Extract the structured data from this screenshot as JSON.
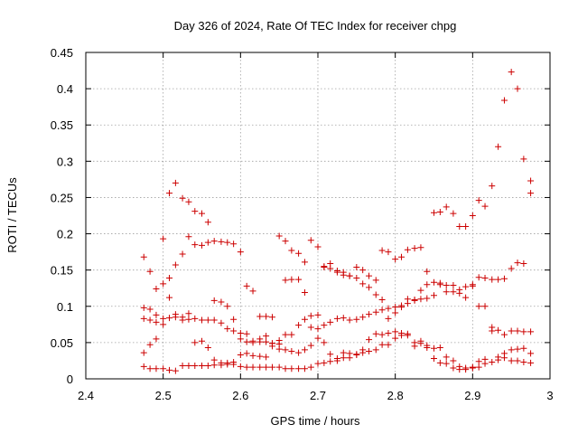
{
  "chart_data": {
    "type": "scatter",
    "title": "Day 326 of 2024, Rate Of TEC Index for receiver chpg",
    "xlabel": "GPS time / hours",
    "ylabel": "ROTI / TECUs",
    "xlim": [
      2.4,
      3.0
    ],
    "ylim": [
      0,
      0.45
    ],
    "xticks": [
      "2.4",
      "2.5",
      "2.6",
      "2.7",
      "2.8",
      "2.9",
      "3"
    ],
    "yticks": [
      "0",
      "0.05",
      "0.1",
      "0.15",
      "0.2",
      "0.25",
      "0.3",
      "0.35",
      "0.4",
      "0.45"
    ],
    "grid": true,
    "marker": "+",
    "color": "#cc0000",
    "series": [
      {
        "name": "ROTI",
        "x": [
          2.475,
          2.483,
          2.491,
          2.5,
          2.508,
          2.516,
          2.525,
          2.533,
          2.541,
          2.55,
          2.558,
          2.566,
          2.575,
          2.583,
          2.591,
          2.6,
          2.608,
          2.616,
          2.625,
          2.633,
          2.641,
          2.65,
          2.658,
          2.666,
          2.675,
          2.683,
          2.691,
          2.7,
          2.708,
          2.716,
          2.725,
          2.733,
          2.741,
          2.75,
          2.758,
          2.766,
          2.775,
          2.783,
          2.791,
          2.8,
          2.808,
          2.816,
          2.825,
          2.833,
          2.841,
          2.85,
          2.858,
          2.866,
          2.875,
          2.883,
          2.891,
          2.9,
          2.908,
          2.916,
          2.925,
          2.933,
          2.941,
          2.95,
          2.958,
          2.966,
          2.975,
          2.475,
          2.483,
          2.491,
          2.5,
          2.508,
          2.516,
          2.525,
          2.533,
          2.541,
          2.55,
          2.558,
          2.566,
          2.575,
          2.583,
          2.591,
          2.6,
          2.608,
          2.616,
          2.625,
          2.633,
          2.641,
          2.65,
          2.658,
          2.666,
          2.675,
          2.683,
          2.691,
          2.7,
          2.708,
          2.716,
          2.725,
          2.733,
          2.741,
          2.75,
          2.758,
          2.766,
          2.775,
          2.783,
          2.791,
          2.8,
          2.808,
          2.816,
          2.825,
          2.833,
          2.841,
          2.85,
          2.858,
          2.866,
          2.875,
          2.883,
          2.891,
          2.9,
          2.908,
          2.916,
          2.925,
          2.933,
          2.941,
          2.95,
          2.958,
          2.966,
          2.975,
          2.475,
          2.483,
          2.491,
          2.5,
          2.508,
          2.516,
          2.525,
          2.533,
          2.541,
          2.55,
          2.558,
          2.566,
          2.575,
          2.583,
          2.591,
          2.6,
          2.608,
          2.616,
          2.625,
          2.633,
          2.641,
          2.65,
          2.658,
          2.666,
          2.675,
          2.683,
          2.691,
          2.7,
          2.708,
          2.716,
          2.725,
          2.733,
          2.741,
          2.75,
          2.758,
          2.766,
          2.775,
          2.783,
          2.791,
          2.8,
          2.808,
          2.816,
          2.825,
          2.833,
          2.841,
          2.85,
          2.858,
          2.866,
          2.875,
          2.883,
          2.891,
          2.9,
          2.908,
          2.916,
          2.925,
          2.933,
          2.941,
          2.95,
          2.958,
          2.966,
          2.975,
          2.475,
          2.483,
          2.491,
          2.5,
          2.508,
          2.516,
          2.525,
          2.533,
          2.541,
          2.55,
          2.558,
          2.566,
          2.575,
          2.583,
          2.591,
          2.6,
          2.608,
          2.616,
          2.625,
          2.633,
          2.641,
          2.65,
          2.658,
          2.666,
          2.675,
          2.683,
          2.691,
          2.7,
          2.708,
          2.716,
          2.725,
          2.733,
          2.741,
          2.75,
          2.758,
          2.766,
          2.775,
          2.783,
          2.791,
          2.8,
          2.808,
          2.816,
          2.825,
          2.833,
          2.841,
          2.85,
          2.858,
          2.866,
          2.875,
          2.883,
          2.891,
          2.9,
          2.908,
          2.916,
          2.925,
          2.933,
          2.941,
          2.95,
          2.958,
          2.966,
          2.975,
          2.475,
          2.483,
          2.491,
          2.5,
          2.508,
          2.516,
          2.525,
          2.533,
          2.541,
          2.55,
          2.558,
          2.566,
          2.575,
          2.583,
          2.591,
          2.6,
          2.608,
          2.616,
          2.625,
          2.633,
          2.641,
          2.65,
          2.658,
          2.666,
          2.675,
          2.683,
          2.691,
          2.7,
          2.708,
          2.716,
          2.725,
          2.733,
          2.741,
          2.75,
          2.758,
          2.766,
          2.775,
          2.783,
          2.791,
          2.8,
          2.808,
          2.816,
          2.825,
          2.833,
          2.841,
          2.85,
          2.858,
          2.866,
          2.875,
          2.883,
          2.891,
          2.9,
          2.908,
          2.916,
          2.925,
          2.933,
          2.941,
          2.95,
          2.958,
          2.966,
          2.975
        ],
        "y": [
          0.168,
          0.148,
          0.124,
          0.131,
          0.139,
          0.157,
          0.172,
          0.196,
          0.185,
          0.184,
          0.188,
          0.19,
          0.189,
          0.188,
          0.186,
          0.175,
          0.128,
          0.121,
          0.086,
          0.086,
          0.085,
          0.197,
          0.19,
          0.177,
          0.173,
          0.161,
          0.191,
          0.182,
          0.154,
          0.152,
          0.149,
          0.147,
          0.142,
          0.154,
          0.15,
          0.142,
          0.136,
          0.177,
          0.175,
          0.165,
          0.168,
          0.178,
          0.18,
          0.181,
          0.148,
          0.229,
          0.23,
          0.237,
          0.228,
          0.21,
          0.21,
          0.225,
          0.246,
          0.238,
          0.266,
          0.32,
          0.384,
          0.423,
          0.4,
          0.303,
          0.273,
          0.098,
          0.096,
          0.088,
          0.193,
          0.256,
          0.27,
          0.249,
          0.244,
          0.231,
          0.228,
          0.216,
          0.108,
          0.106,
          0.1,
          0.082,
          0.063,
          0.062,
          0.052,
          0.051,
          0.051,
          0.049,
          0.048,
          0.061,
          0.061,
          0.074,
          0.082,
          0.087,
          0.088,
          0.155,
          0.159,
          0.147,
          0.143,
          0.142,
          0.139,
          0.131,
          0.126,
          0.116,
          0.109,
          0.097,
          0.099,
          0.101,
          0.11,
          0.109,
          0.11,
          0.111,
          0.115,
          0.13,
          0.12,
          0.12,
          0.118,
          0.112,
          0.13,
          0.1,
          0.1,
          0.137,
          0.137,
          0.138,
          0.152,
          0.16,
          0.159,
          0.256,
          0.083,
          0.081,
          0.078,
          0.083,
          0.084,
          0.085,
          0.081,
          0.082,
          0.083,
          0.081,
          0.081,
          0.081,
          0.077,
          0.069,
          0.066,
          0.055,
          0.051,
          0.05,
          0.055,
          0.059,
          0.049,
          0.053,
          0.136,
          0.137,
          0.137,
          0.119,
          0.071,
          0.069,
          0.074,
          0.078,
          0.083,
          0.084,
          0.081,
          0.082,
          0.085,
          0.089,
          0.092,
          0.095,
          0.083,
          0.091,
          0.099,
          0.104,
          0.108,
          0.122,
          0.13,
          0.133,
          0.132,
          0.129,
          0.129,
          0.123,
          0.127,
          0.128,
          0.14,
          0.139,
          0.071,
          0.067,
          0.061,
          0.066,
          0.066,
          0.065,
          0.065,
          0.036,
          0.047,
          0.055,
          0.075,
          0.112,
          0.089,
          0.085,
          0.09,
          0.05,
          0.052,
          0.043,
          0.026,
          0.022,
          0.022,
          0.023,
          0.033,
          0.035,
          0.032,
          0.031,
          0.03,
          0.045,
          0.041,
          0.04,
          0.038,
          0.036,
          0.04,
          0.046,
          0.056,
          0.05,
          0.034,
          0.028,
          0.036,
          0.035,
          0.033,
          0.036,
          0.038,
          0.04,
          0.047,
          0.047,
          0.056,
          0.06,
          0.06,
          0.045,
          0.052,
          0.046,
          0.042,
          0.043,
          0.03,
          0.025,
          0.017,
          0.015,
          0.015,
          0.024,
          0.027,
          0.066,
          0.03,
          0.035,
          0.04,
          0.041,
          0.042,
          0.035,
          0.017,
          0.014,
          0.014,
          0.014,
          0.012,
          0.011,
          0.018,
          0.018,
          0.018,
          0.018,
          0.018,
          0.019,
          0.019,
          0.02,
          0.02,
          0.017,
          0.016,
          0.016,
          0.016,
          0.016,
          0.016,
          0.016,
          0.014,
          0.014,
          0.014,
          0.014,
          0.016,
          0.021,
          0.022,
          0.024,
          0.025,
          0.029,
          0.029,
          0.034,
          0.04,
          0.054,
          0.062,
          0.061,
          0.063,
          0.065,
          0.063,
          0.062,
          0.05,
          0.049,
          0.043,
          0.028,
          0.022,
          0.021,
          0.015,
          0.013,
          0.013,
          0.016,
          0.016,
          0.021,
          0.023,
          0.026,
          0.029,
          0.025,
          0.025,
          0.023,
          0.022
        ]
      }
    ]
  }
}
